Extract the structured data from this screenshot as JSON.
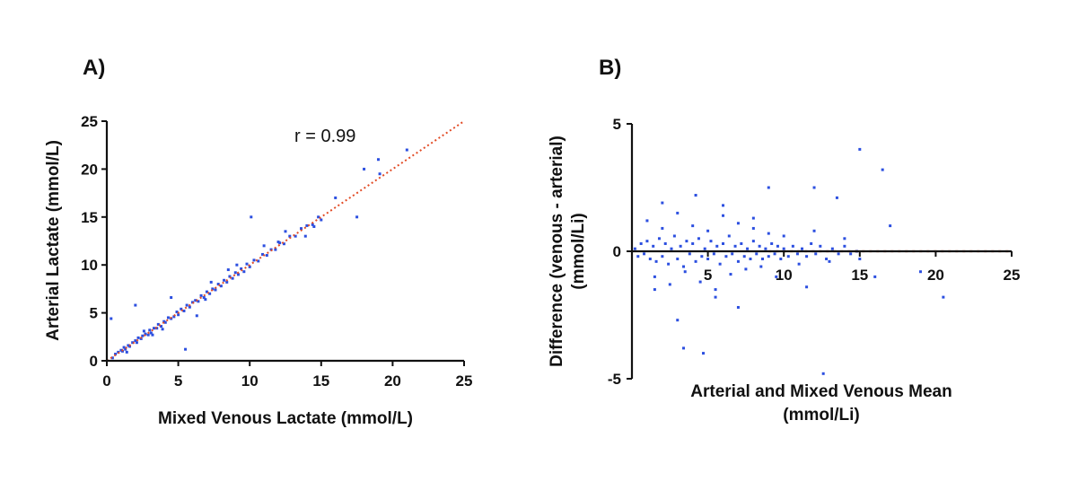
{
  "chart_data": [
    {
      "panel_label": "A)",
      "type": "scatter",
      "xlabel": "Mixed Venous Lactate (mmol/L)",
      "ylabel": "Arterial Lactate (mmol/L)",
      "xlim": [
        0,
        25
      ],
      "ylim": [
        0,
        25
      ],
      "xticks": [
        0,
        5,
        10,
        15,
        20,
        25
      ],
      "yticks": [
        0,
        5,
        10,
        15,
        20,
        25
      ],
      "annotation": "r = 0.99",
      "fit_line": [
        [
          0,
          0
        ],
        [
          25,
          25
        ]
      ],
      "colors": {
        "points": "#2c4fe0",
        "fit": "#e24b25"
      },
      "series": [
        {
          "x": [
            0.4,
            0.6,
            0.8,
            1.0,
            1.1,
            1.2,
            1.3,
            1.5,
            1.6,
            1.8,
            2.0,
            2.1,
            2.2,
            2.4,
            2.5,
            2.7,
            2.9,
            3.0,
            3.1,
            3.3,
            3.5,
            3.6,
            3.8,
            4.0,
            4.1,
            4.3,
            4.5,
            4.7,
            4.9,
            5.0,
            5.2,
            5.4,
            5.6,
            5.8,
            6.0,
            6.2,
            6.4,
            6.6,
            6.8,
            7.0,
            7.2,
            7.4,
            7.6,
            7.8,
            8.0,
            8.2,
            8.4,
            8.6,
            8.8,
            9.0,
            9.2,
            9.4,
            9.6,
            9.8,
            10.0,
            10.3,
            10.6,
            10.9,
            11.2,
            11.5,
            11.8,
            12.1,
            12.4,
            12.8,
            13.2,
            13.6,
            14.0,
            14.4,
            14.8,
            15.0,
            0.3,
            2.0,
            4.5,
            6.3,
            10.1,
            12.0,
            16.0,
            17.5,
            18.0,
            19.0,
            19.1,
            21.0,
            14.5,
            11.0,
            8.5,
            3.2,
            5.5,
            7.3,
            9.1,
            1.4,
            2.6,
            3.9,
            6.9,
            12.5,
            13.9
          ],
          "y": [
            0.3,
            0.7,
            0.9,
            1.1,
            1.0,
            1.4,
            1.2,
            1.6,
            1.5,
            1.9,
            2.1,
            1.9,
            2.4,
            2.3,
            2.6,
            2.8,
            2.7,
            3.2,
            2.9,
            3.4,
            3.4,
            3.8,
            3.6,
            4.1,
            4.0,
            4.5,
            4.4,
            4.6,
            5.1,
            4.8,
            5.4,
            5.2,
            5.8,
            5.6,
            6.1,
            6.3,
            6.2,
            6.8,
            6.6,
            7.2,
            7.0,
            7.5,
            7.4,
            8.0,
            7.8,
            8.4,
            8.2,
            8.8,
            8.6,
            9.2,
            9.0,
            9.6,
            9.3,
            10.1,
            9.8,
            10.5,
            10.4,
            11.1,
            11.0,
            11.6,
            11.6,
            12.3,
            12.2,
            13.0,
            13.0,
            13.8,
            14.1,
            14.2,
            15.0,
            14.7,
            4.4,
            5.8,
            6.6,
            4.7,
            15.0,
            12.4,
            17.0,
            15.0,
            20.0,
            21.0,
            19.5,
            22.0,
            14.0,
            12.0,
            9.5,
            2.7,
            1.2,
            8.2,
            10.0,
            0.9,
            3.1,
            3.3,
            6.4,
            13.5,
            13.0
          ]
        }
      ]
    },
    {
      "panel_label": "B)",
      "type": "scatter",
      "xlabel_line1": "Arterial and Mixed Venous Mean",
      "xlabel_line2": "(mmol/Li)",
      "ylabel_line1": "Difference (venous - arterial)",
      "ylabel_line2": "(mmol/Li)",
      "xlim": [
        0,
        25
      ],
      "ylim": [
        -5,
        5
      ],
      "xticks": [
        5,
        10,
        15,
        20,
        25
      ],
      "yticks": [
        -5,
        0,
        5
      ],
      "zero_line": 0,
      "colors": {
        "points": "#2c4fe0",
        "zero_line": "#e24b25"
      },
      "series": [
        {
          "x": [
            0.2,
            0.4,
            0.6,
            0.8,
            1.0,
            1.2,
            1.4,
            1.6,
            1.8,
            2.0,
            2.2,
            2.4,
            2.6,
            2.8,
            3.0,
            3.2,
            3.4,
            3.6,
            3.8,
            4.0,
            4.2,
            4.4,
            4.6,
            4.8,
            5.0,
            5.2,
            5.4,
            5.6,
            5.8,
            6.0,
            6.2,
            6.4,
            6.6,
            6.8,
            7.0,
            7.2,
            7.4,
            7.6,
            7.8,
            8.0,
            8.2,
            8.4,
            8.6,
            8.8,
            9.0,
            9.2,
            9.4,
            9.6,
            9.8,
            10.0,
            10.3,
            10.6,
            10.9,
            11.2,
            11.5,
            11.8,
            12.1,
            12.4,
            12.8,
            13.2,
            13.6,
            14.0,
            14.4,
            14.8,
            1.0,
            1.5,
            2.0,
            2.5,
            3.0,
            3.5,
            4.0,
            4.5,
            5.0,
            5.5,
            6.0,
            6.5,
            7.0,
            7.5,
            8.0,
            8.5,
            9.0,
            9.5,
            10.0,
            11.0,
            12.0,
            13.0,
            14.0,
            15.0,
            3.4,
            4.7,
            12.6,
            15.0,
            16.5,
            16.0,
            17.0,
            19.0,
            20.5,
            12.0,
            9.0,
            2.0,
            6.0,
            7.0,
            3.0,
            5.5,
            8.0,
            11.5,
            13.5,
            1.5,
            4.2
          ],
          "y": [
            0.1,
            -0.2,
            0.3,
            -0.1,
            0.4,
            -0.3,
            0.2,
            -0.4,
            0.5,
            -0.2,
            0.3,
            -0.5,
            0.1,
            0.6,
            -0.3,
            0.2,
            -0.6,
            0.4,
            -0.1,
            0.3,
            -0.4,
            0.5,
            -0.2,
            0.1,
            -0.3,
            0.4,
            -0.1,
            0.2,
            -0.5,
            0.3,
            -0.2,
            0.6,
            -0.1,
            0.2,
            -0.4,
            0.3,
            -0.2,
            0.1,
            -0.3,
            0.4,
            -0.1,
            0.2,
            -0.3,
            0.1,
            -0.2,
            0.3,
            -0.1,
            0.2,
            -0.3,
            0.1,
            -0.2,
            0.2,
            -0.1,
            0.1,
            -0.2,
            0.3,
            -0.1,
            0.2,
            -0.3,
            0.1,
            -0.1,
            0.2,
            -0.1,
            0.0,
            1.2,
            -1.0,
            0.9,
            -1.3,
            1.5,
            -0.8,
            1.0,
            -1.2,
            0.8,
            -1.5,
            1.4,
            -0.9,
            1.1,
            -0.7,
            0.9,
            -0.6,
            0.7,
            -1.0,
            0.6,
            -0.5,
            0.8,
            -0.4,
            0.5,
            -0.3,
            -3.8,
            -4.0,
            -4.8,
            4.0,
            3.2,
            -1.0,
            1.0,
            -0.8,
            -1.8,
            2.5,
            2.5,
            1.9,
            1.8,
            -2.2,
            -2.7,
            -1.8,
            1.3,
            -1.4,
            2.1,
            -1.5,
            2.2
          ]
        }
      ]
    }
  ]
}
